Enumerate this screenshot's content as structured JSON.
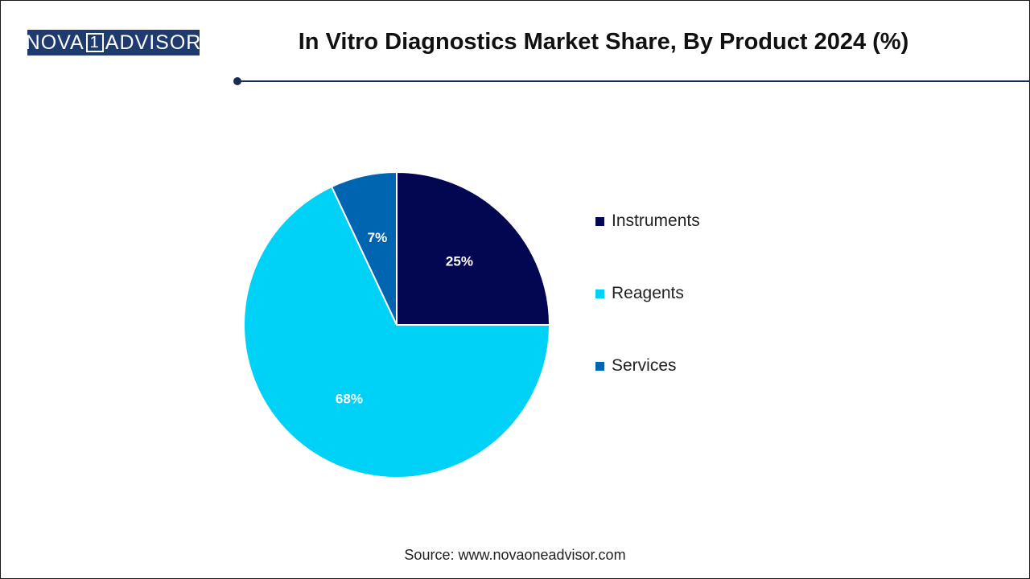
{
  "header": {
    "logo_text_left": "NOVA",
    "logo_text_mark": "1",
    "logo_text_right": "ADVISOR",
    "title": "In Vitro Diagnostics Market Share, By Product 2024 (%)"
  },
  "colors": {
    "logo_bg": "#1f3a6e",
    "rule": "#1a2a55",
    "Instruments": "#030651",
    "Reagents": "#00d2f7",
    "Services": "#0065b0"
  },
  "chart_data": {
    "type": "pie",
    "title": "In Vitro Diagnostics Market Share, By Product 2024 (%)",
    "categories": [
      "Instruments",
      "Reagents",
      "Services"
    ],
    "values": [
      25,
      68,
      7
    ],
    "labels": [
      "25%",
      "68%",
      "7%"
    ],
    "start_angle": "12 o'clock",
    "direction": "clockwise",
    "legend_position": "right"
  },
  "legend": {
    "items": [
      {
        "label": "Instruments",
        "color": "#030651"
      },
      {
        "label": "Reagents",
        "color": "#00d2f7"
      },
      {
        "label": "Services",
        "color": "#0065b0"
      }
    ]
  },
  "footer": {
    "source": "Source: www.novaoneadvisor.com"
  }
}
